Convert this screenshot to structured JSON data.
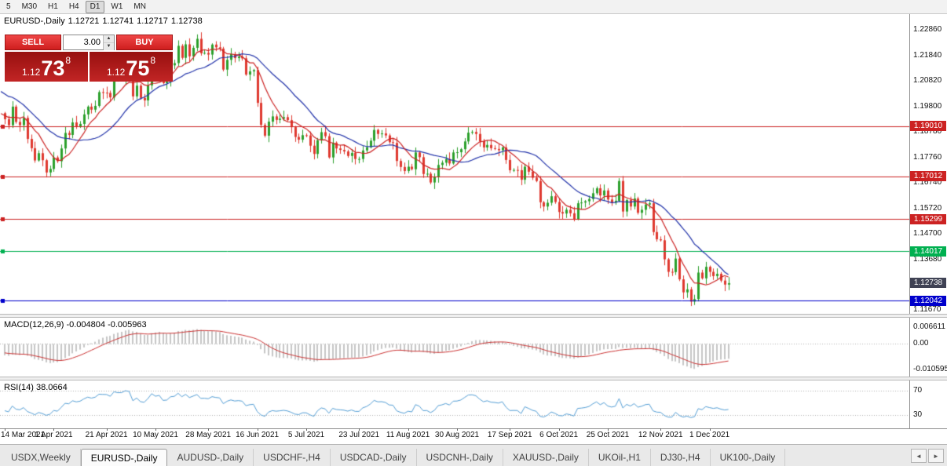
{
  "toolbar": {
    "timeframes": [
      {
        "label": "5",
        "active": false
      },
      {
        "label": "M30",
        "active": false
      },
      {
        "label": "H1",
        "active": false
      },
      {
        "label": "H4",
        "active": false
      },
      {
        "label": "D1",
        "active": true
      },
      {
        "label": "W1",
        "active": false
      },
      {
        "label": "MN",
        "active": false
      }
    ]
  },
  "chart": {
    "title": "EURUSD-,Daily",
    "open": "1.12721",
    "high": "1.12741",
    "low": "1.12717",
    "close": "1.12738"
  },
  "trade_panel": {
    "sell_label": "SELL",
    "buy_label": "BUY",
    "volume": "3.00",
    "sell_price": {
      "prefix": "1.12",
      "big": "73",
      "sup": "8"
    },
    "buy_price": {
      "prefix": "1.12",
      "big": "75",
      "sup": "8"
    }
  },
  "icons": {
    "spin_up": "▲",
    "spin_down": "▼",
    "tab_scroll_left": "◄",
    "tab_scroll_right": "►"
  },
  "price_axis": {
    "labels": [
      {
        "text": "1.22860",
        "value": 1.2286
      },
      {
        "text": "1.21840",
        "value": 1.2184
      },
      {
        "text": "1.20820",
        "value": 1.2082
      },
      {
        "text": "1.19800",
        "value": 1.198
      },
      {
        "text": "1.18780",
        "value": 1.1878
      },
      {
        "text": "1.17760",
        "value": 1.1776
      },
      {
        "text": "1.16740",
        "value": 1.1674
      },
      {
        "text": "1.15720",
        "value": 1.1572
      },
      {
        "text": "1.14700",
        "value": 1.147
      },
      {
        "text": "1.13680",
        "value": 1.1368
      },
      {
        "text": "1.11670",
        "value": 1.1167
      }
    ]
  },
  "hlines": [
    {
      "value": 1.1901,
      "label": "1.19010",
      "color": "#cc2222"
    },
    {
      "value": 1.17012,
      "label": "1.17012",
      "color": "#cc2222"
    },
    {
      "value": 1.15299,
      "label": "1.15299",
      "color": "#cc2222"
    },
    {
      "value": 1.14017,
      "label": "1.14017",
      "color": "#00b050"
    },
    {
      "value": 1.12042,
      "label": "1.12042",
      "color": "#0000cc"
    }
  ],
  "current_price": {
    "label": "1.12738",
    "value": 1.12738,
    "badge_color": "#3f4254"
  },
  "indicators": {
    "macd": {
      "header": "MACD(12,26,9) -0.004804 -0.005963",
      "fast": 12,
      "slow": 26,
      "signal": 9,
      "axis_labels": [
        {
          "text": "0.006611",
          "value": 0.006611
        },
        {
          "text": "0.00",
          "value": 0
        },
        {
          "text": "-0.010595",
          "value": -0.010595
        }
      ]
    },
    "rsi": {
      "header": "RSI(14) 38.0664",
      "period": 14,
      "levels": [
        70,
        30
      ],
      "axis_labels": [
        {
          "text": "70",
          "value": 70
        },
        {
          "text": "30",
          "value": 30
        }
      ]
    }
  },
  "tabs": [
    {
      "label": "USDX,Weekly",
      "active": false
    },
    {
      "label": "EURUSD-,Daily",
      "active": true
    },
    {
      "label": "AUDUSD-,Daily",
      "active": false
    },
    {
      "label": "USDCHF-,H4",
      "active": false
    },
    {
      "label": "USDCAD-,Daily",
      "active": false
    },
    {
      "label": "USDCNH-,Daily",
      "active": false
    },
    {
      "label": "XAUUSD-,Daily",
      "active": false
    },
    {
      "label": "UKOil-,H1",
      "active": false
    },
    {
      "label": "DJ30-,H4",
      "active": false
    },
    {
      "label": "UK100-,Daily",
      "active": false
    }
  ],
  "chart_data": {
    "type": "candlestick",
    "title": "EURUSD-,Daily",
    "ohlc_current": {
      "open": 1.12721,
      "high": 1.12741,
      "low": 1.12717,
      "close": 1.12738
    },
    "price_range": [
      1.11513,
      1.23487
    ],
    "macd_range": [
      -0.0135,
      0.0105
    ],
    "rsi_range": [
      8,
      86
    ],
    "ma_fast_period": 8,
    "ma_slow_period": 20,
    "colors": {
      "candle_up": "#2ca02c",
      "candle_down": "#df3a30",
      "ma_fast": "#cc2222",
      "ma_slow": "#2233aa",
      "macd_hist": "#c6c6c6",
      "macd_signal": "#cc3333",
      "rsi_line": "#559fd6",
      "level_dotted": "#b0b0b0"
    },
    "hline_values": [
      1.1901,
      1.17012,
      1.15299,
      1.14017,
      1.12042
    ],
    "time_axis": [
      {
        "text": "14 Mar 2021",
        "index": 0
      },
      {
        "text": "1 Apr 2021",
        "index": 13
      },
      {
        "text": "21 Apr 2021",
        "index": 27
      },
      {
        "text": "10 May 2021",
        "index": 40
      },
      {
        "text": "28 May 2021",
        "index": 54
      },
      {
        "text": "16 Jun 2021",
        "index": 67
      },
      {
        "text": "5 Jul 2021",
        "index": 80
      },
      {
        "text": "23 Jul 2021",
        "index": 94
      },
      {
        "text": "11 Aug 2021",
        "index": 107
      },
      {
        "text": "30 Aug 2021",
        "index": 120
      },
      {
        "text": "17 Sep 2021",
        "index": 134
      },
      {
        "text": "6 Oct 2021",
        "index": 147
      },
      {
        "text": "25 Oct 2021",
        "index": 160
      },
      {
        "text": "12 Nov 2021",
        "index": 174
      },
      {
        "text": "1 Dec 2021",
        "index": 187
      }
    ],
    "seed_closes": [
      1.212,
      1.211,
      1.2046,
      1.2089,
      1.2118,
      1.216,
      1.215,
      1.2099,
      1.2068,
      1.2076,
      1.2093,
      1.2053,
      1.1991,
      1.1964,
      1.1975,
      1.1923,
      1.1928,
      1.1893,
      1.1982,
      1.1953
    ],
    "closes": [
      1.1929,
      1.1905,
      1.1979,
      1.1918,
      1.1905,
      1.1934,
      1.185,
      1.1813,
      1.1764,
      1.1793,
      1.1765,
      1.1716,
      1.173,
      1.1776,
      1.1761,
      1.1812,
      1.1874,
      1.1866,
      1.1916,
      1.1899,
      1.191,
      1.1948,
      1.1979,
      1.1967,
      1.1982,
      1.2037,
      1.2035,
      1.2034,
      1.2016,
      1.2098,
      1.2089,
      1.209,
      1.2127,
      1.2121,
      1.202,
      1.2063,
      1.2014,
      1.2004,
      1.2064,
      1.2164,
      1.2129,
      1.2147,
      1.2073,
      1.2079,
      1.2144,
      1.2153,
      1.2222,
      1.2174,
      1.2228,
      1.218,
      1.2214,
      1.225,
      1.2192,
      1.2194,
      1.2187,
      1.2227,
      1.2216,
      1.2211,
      1.2127,
      1.2166,
      1.2189,
      1.2173,
      1.2179,
      1.2172,
      1.2107,
      1.212,
      1.2125,
      1.1994,
      1.1906,
      1.1863,
      1.1919,
      1.194,
      1.1926,
      1.1931,
      1.1937,
      1.1925,
      1.1897,
      1.1858,
      1.1847,
      1.1865,
      1.1864,
      1.1823,
      1.179,
      1.1845,
      1.1877,
      1.1861,
      1.1776,
      1.1835,
      1.1812,
      1.1806,
      1.18,
      1.1782,
      1.1794,
      1.177,
      1.177,
      1.1804,
      1.1817,
      1.1843,
      1.1886,
      1.187,
      1.1872,
      1.1864,
      1.1837,
      1.1834,
      1.1762,
      1.1738,
      1.1722,
      1.1739,
      1.1729,
      1.1796,
      1.1777,
      1.171,
      1.1711,
      1.1676,
      1.1697,
      1.1746,
      1.1755,
      1.177,
      1.1752,
      1.1796,
      1.1797,
      1.1809,
      1.184,
      1.1875,
      1.1878,
      1.187,
      1.1841,
      1.1816,
      1.1826,
      1.1813,
      1.181,
      1.1805,
      1.1816,
      1.1766,
      1.1725,
      1.1726,
      1.1725,
      1.1687,
      1.1739,
      1.1719,
      1.1695,
      1.1682,
      1.1597,
      1.158,
      1.1595,
      1.1621,
      1.1598,
      1.1558,
      1.1552,
      1.1567,
      1.1553,
      1.153,
      1.1593,
      1.1596,
      1.1601,
      1.161,
      1.1633,
      1.1653,
      1.1624,
      1.1644,
      1.1608,
      1.1596,
      1.1603,
      1.1682,
      1.156,
      1.1606,
      1.158,
      1.1612,
      1.1555,
      1.1567,
      1.1588,
      1.1593,
      1.1478,
      1.1449,
      1.1445,
      1.1369,
      1.1319,
      1.1318,
      1.1372,
      1.1289,
      1.1237,
      1.1249,
      1.12,
      1.121,
      1.1316,
      1.1293,
      1.1339,
      1.1319,
      1.1302,
      1.1311,
      1.1284,
      1.1268,
      1.12738
    ]
  }
}
